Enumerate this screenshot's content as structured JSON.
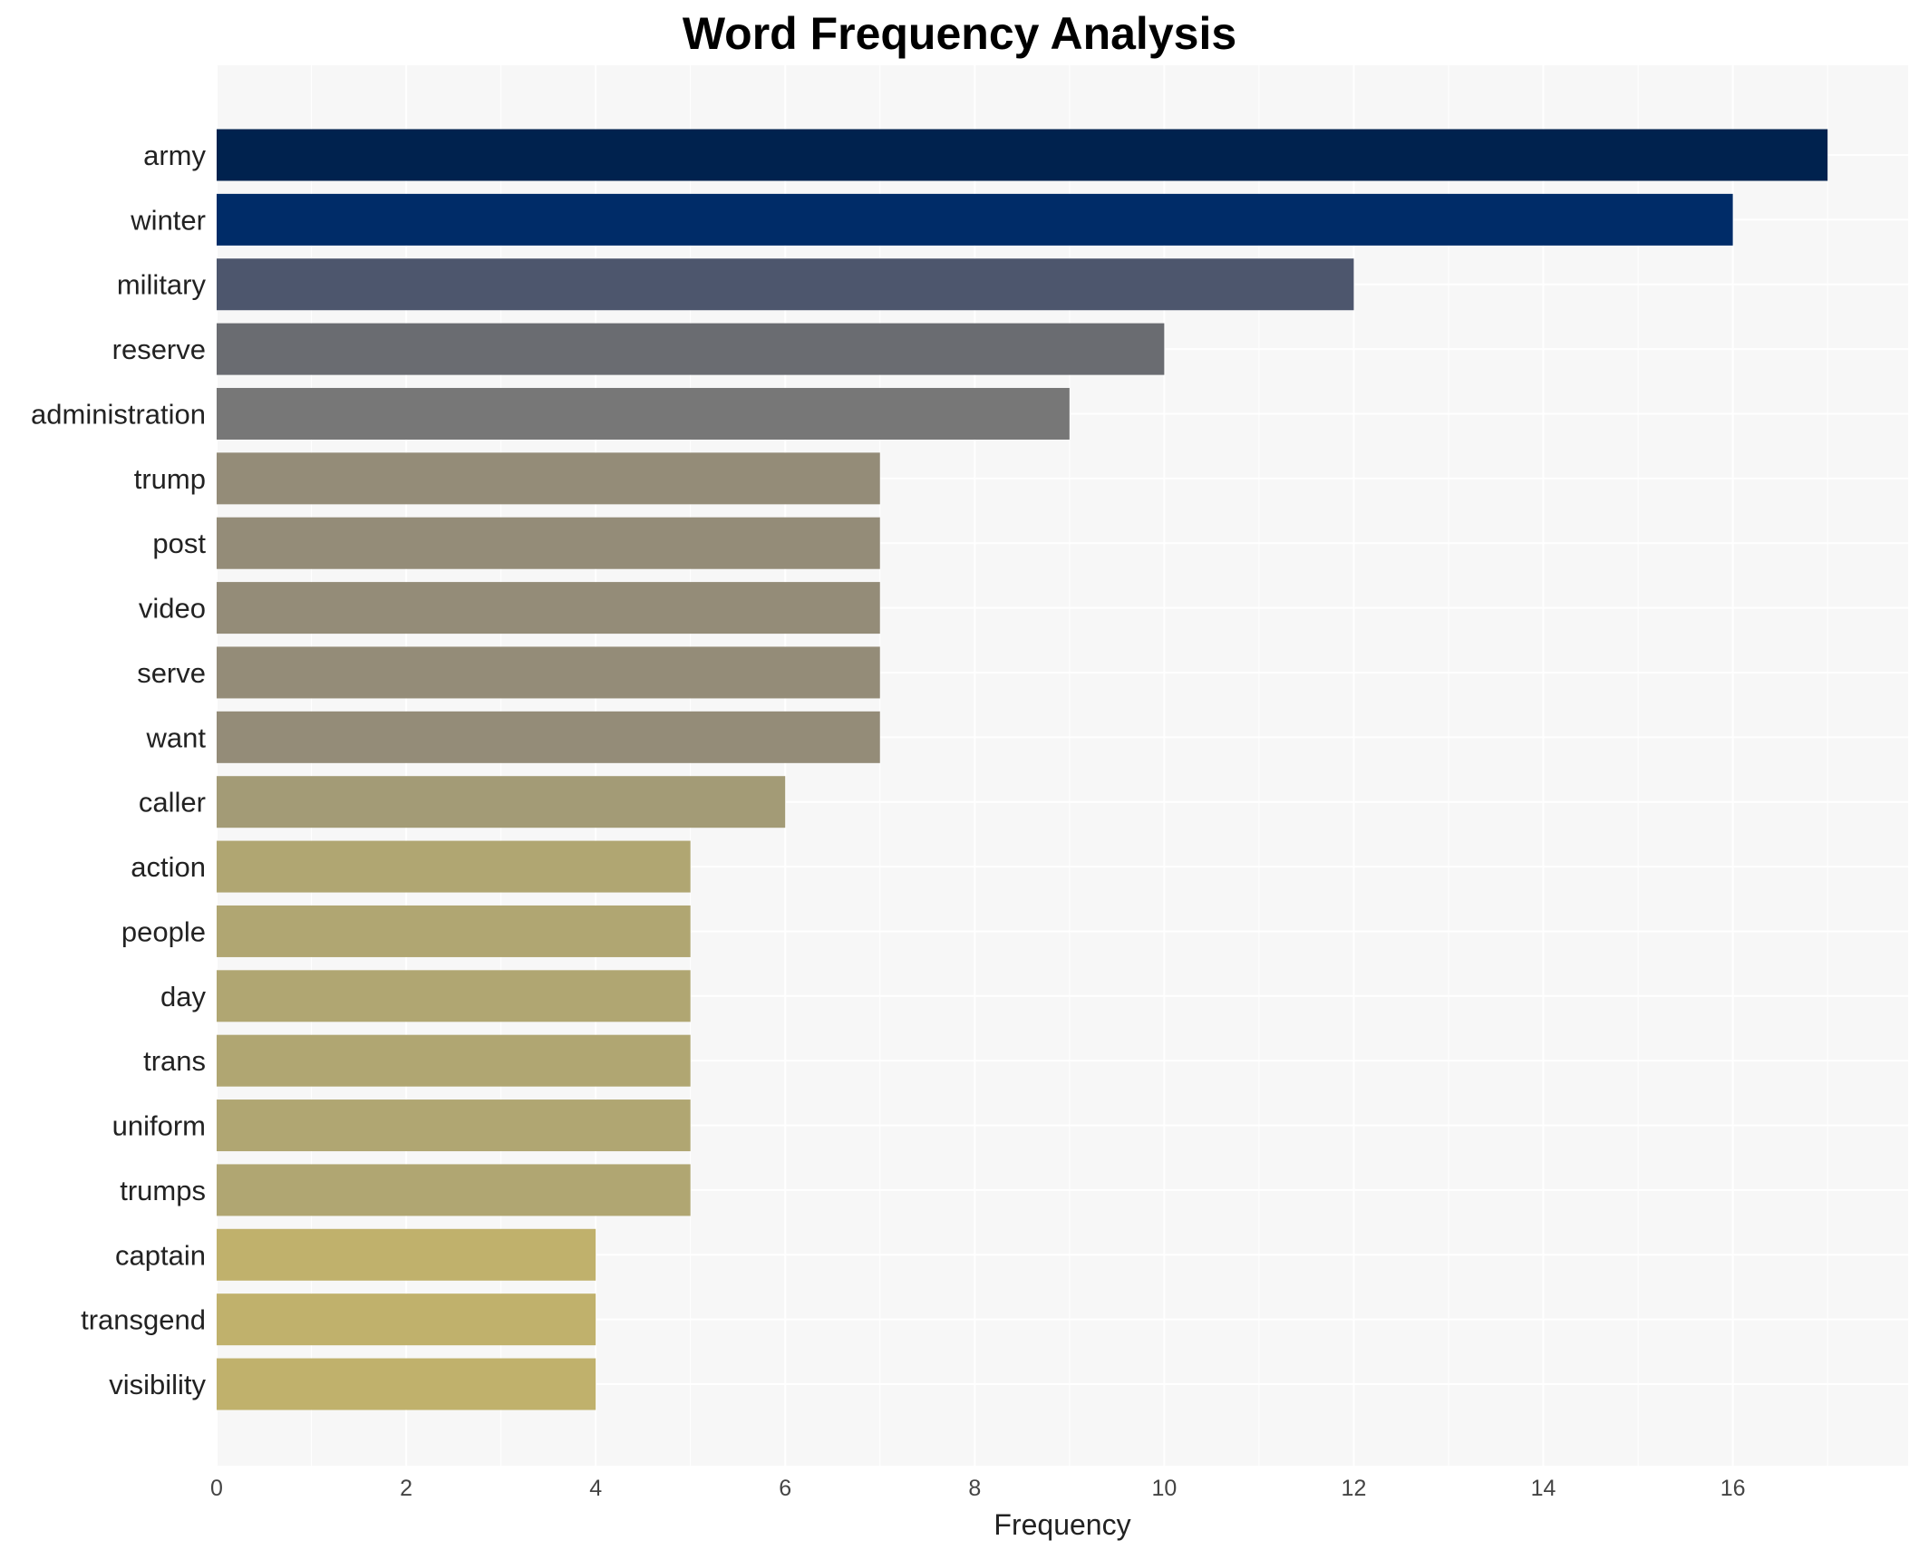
{
  "chart_data": {
    "type": "bar",
    "orientation": "horizontal",
    "title": "Word Frequency Analysis",
    "xlabel": "Frequency",
    "ylabel": "",
    "xlim": [
      0,
      17.85
    ],
    "xticks": [
      0,
      2,
      4,
      6,
      8,
      10,
      12,
      14,
      16
    ],
    "grid": true,
    "categories": [
      "army",
      "winter",
      "military",
      "reserve",
      "administration",
      "trump",
      "post",
      "video",
      "serve",
      "want",
      "caller",
      "action",
      "people",
      "day",
      "trans",
      "uniform",
      "trumps",
      "captain",
      "transgend",
      "visibility"
    ],
    "values": [
      17,
      16,
      12,
      10,
      9,
      7,
      7,
      7,
      7,
      7,
      6,
      5,
      5,
      5,
      5,
      5,
      5,
      4,
      4,
      4
    ],
    "colors": [
      "#00224e",
      "#002c68",
      "#4d566d",
      "#6a6c71",
      "#777777",
      "#948c78",
      "#948c78",
      "#948c78",
      "#948c78",
      "#948c78",
      "#a39b76",
      "#b0a672",
      "#b0a672",
      "#b0a672",
      "#b0a672",
      "#b0a672",
      "#b0a672",
      "#c0b16c",
      "#c0b16c",
      "#c0b16c"
    ],
    "background": "#f7f7f7",
    "gridline_color": "#ffffff"
  }
}
